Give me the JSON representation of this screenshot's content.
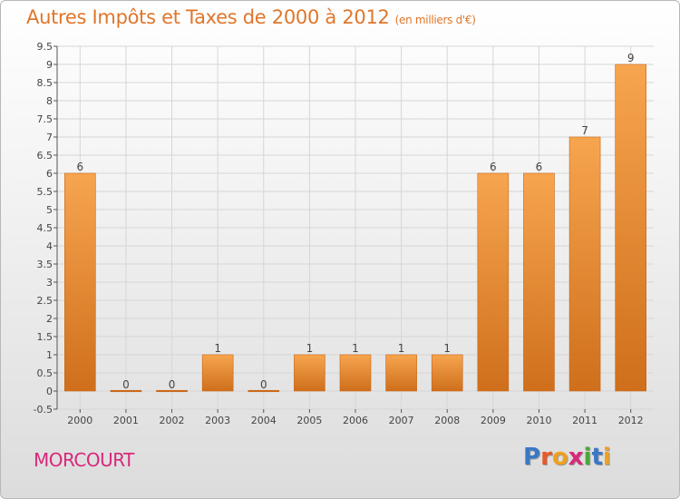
{
  "header": {
    "title": "Autres Impôts et Taxes de 2000 à 2012",
    "subtitle": "(en milliers d'€)"
  },
  "footer": {
    "commune": "MORCOURT",
    "logo": {
      "letters": [
        "P",
        "r",
        "o",
        "x",
        "i",
        "t",
        "i"
      ],
      "colors": [
        "#3a78c4",
        "#e8582a",
        "#f0a020",
        "#d8287a",
        "#4aa83a",
        "#3a78c4",
        "#f0a020"
      ]
    }
  },
  "colors": {
    "bar_top": "#f7a54f",
    "bar_bottom": "#cf6f1b",
    "bar_edge": "#c86418",
    "grid": "#d6d6d6",
    "axis": "#555555"
  },
  "chart_data": {
    "type": "bar",
    "title": "Autres Impôts et Taxes de 2000 à 2012",
    "subtitle": "(en milliers d'€)",
    "categories": [
      "2000",
      "2001",
      "2002",
      "2003",
      "2004",
      "2005",
      "2006",
      "2007",
      "2008",
      "2009",
      "2010",
      "2011",
      "2012"
    ],
    "values": [
      6,
      0,
      0,
      1,
      0,
      1,
      1,
      1,
      1,
      6,
      6,
      7,
      9
    ],
    "data_labels": [
      "6",
      "0",
      "0",
      "1",
      "0",
      "1",
      "1",
      "1",
      "1",
      "6",
      "6",
      "7",
      "9"
    ],
    "y_ticks": [
      "-0.5",
      "0",
      "0.5",
      "1",
      "1.5",
      "2",
      "2.5",
      "3",
      "3.5",
      "4",
      "4.5",
      "5",
      "5.5",
      "6",
      "6.5",
      "7",
      "7.5",
      "8",
      "8.5",
      "9",
      "9.5"
    ],
    "y_tick_values": [
      -0.5,
      0,
      0.5,
      1,
      1.5,
      2,
      2.5,
      3,
      3.5,
      4,
      4.5,
      5,
      5.5,
      6,
      6.5,
      7,
      7.5,
      8,
      8.5,
      9,
      9.5
    ],
    "ylim": [
      -0.5,
      9.5
    ],
    "grid": true,
    "legend": "none"
  }
}
